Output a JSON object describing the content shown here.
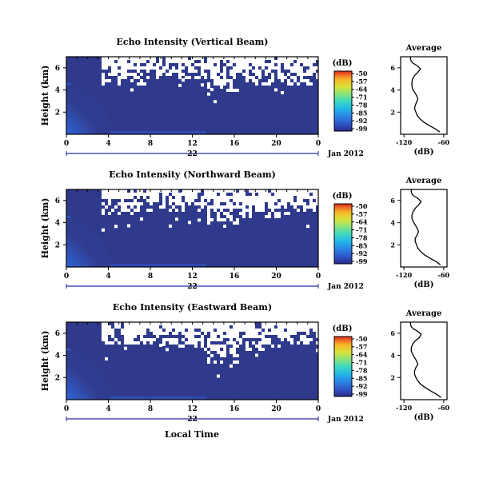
{
  "figure": {
    "xaxis_label": "Local Time",
    "date_label": "Jan 2012",
    "day_label": "22",
    "cbar_unit": "(dB)",
    "avg_title": "Average",
    "avg_xlabel": "(dB)"
  },
  "chart_data": [
    {
      "type": "heatmap",
      "title": "Echo Intensity (Vertical Beam)",
      "ylabel": "Height (km)",
      "x_ticks": [
        "0",
        "4",
        "8",
        "12",
        "16",
        "20",
        "0"
      ],
      "y_ticks": [
        "2",
        "4",
        "6"
      ],
      "xlim": [
        0,
        24
      ],
      "ylim": [
        0,
        7
      ],
      "colorbar": {
        "label": "(dB)",
        "ticks": [
          "-50",
          "-57",
          "-64",
          "-71",
          "-78",
          "-85",
          "-92",
          "-99"
        ],
        "range": [
          -99,
          -50
        ]
      },
      "avg_profile": {
        "title": "Average",
        "xlabel": "(dB)",
        "x_ticks": [
          "-120",
          "-60"
        ],
        "y_ticks": [
          "2",
          "4",
          "6"
        ],
        "xlim": [
          -125,
          -55
        ],
        "ylim": [
          0,
          7
        ],
        "x": [
          -66,
          -73,
          -82,
          -90,
          -96,
          -100,
          -102,
          -104,
          -103,
          -101,
          -99,
          -101,
          -104,
          -107,
          -108,
          -108,
          -107,
          -104,
          -99,
          -95,
          -100,
          -106,
          -109,
          -110,
          -110
        ],
        "y": [
          0.2,
          0.5,
          0.8,
          1.1,
          1.4,
          1.7,
          2.0,
          2.3,
          2.6,
          2.9,
          3.2,
          3.5,
          3.8,
          4.1,
          4.4,
          4.7,
          5.0,
          5.3,
          5.6,
          5.9,
          6.2,
          6.4,
          6.6,
          6.8,
          7.0
        ]
      }
    },
    {
      "type": "heatmap",
      "title": "Echo Intensity (Northward Beam)",
      "ylabel": "Height (km)",
      "x_ticks": [
        "0",
        "4",
        "8",
        "12",
        "16",
        "20",
        "0"
      ],
      "y_ticks": [
        "2",
        "4",
        "6"
      ],
      "xlim": [
        0,
        24
      ],
      "ylim": [
        0,
        7
      ],
      "colorbar": {
        "label": "(dB)",
        "ticks": [
          "-50",
          "-57",
          "-64",
          "-71",
          "-78",
          "-85",
          "-92",
          "-99"
        ],
        "range": [
          -99,
          -50
        ]
      },
      "avg_profile": {
        "title": "Average",
        "xlabel": "(dB)",
        "x_ticks": [
          "-120",
          "-60"
        ],
        "y_ticks": [
          "2",
          "4",
          "6"
        ],
        "xlim": [
          -125,
          -55
        ],
        "ylim": [
          0,
          7
        ],
        "x": [
          -65,
          -72,
          -81,
          -89,
          -95,
          -99,
          -101,
          -103,
          -103,
          -100,
          -98,
          -100,
          -103,
          -106,
          -108,
          -108,
          -106,
          -103,
          -98,
          -94,
          -99,
          -105,
          -108,
          -109,
          -109
        ],
        "y": [
          0.2,
          0.5,
          0.8,
          1.1,
          1.4,
          1.7,
          2.0,
          2.3,
          2.6,
          2.9,
          3.2,
          3.5,
          3.8,
          4.1,
          4.4,
          4.7,
          5.0,
          5.3,
          5.6,
          5.9,
          6.2,
          6.4,
          6.6,
          6.8,
          7.0
        ]
      }
    },
    {
      "type": "heatmap",
      "title": "Echo Intensity (Eastward Beam)",
      "ylabel": "Height (km)",
      "x_ticks": [
        "0",
        "4",
        "8",
        "12",
        "16",
        "20",
        "0"
      ],
      "y_ticks": [
        "2",
        "4",
        "6"
      ],
      "xlim": [
        0,
        24
      ],
      "ylim": [
        0,
        7
      ],
      "colorbar": {
        "label": "(dB)",
        "ticks": [
          "-50",
          "-57",
          "-64",
          "-71",
          "-78",
          "-85",
          "-92",
          "-99"
        ],
        "range": [
          -99,
          -50
        ]
      },
      "avg_profile": {
        "title": "Average",
        "xlabel": "(dB)",
        "x_ticks": [
          "-120",
          "-60"
        ],
        "y_ticks": [
          "2",
          "4",
          "6"
        ],
        "xlim": [
          -125,
          -55
        ],
        "ylim": [
          0,
          7
        ],
        "x": [
          -64,
          -71,
          -80,
          -88,
          -95,
          -99,
          -102,
          -104,
          -104,
          -102,
          -99,
          -101,
          -104,
          -107,
          -109,
          -109,
          -107,
          -103,
          -97,
          -94,
          -100,
          -106,
          -109,
          -110,
          -110
        ],
        "y": [
          0.2,
          0.5,
          0.8,
          1.1,
          1.4,
          1.7,
          2.0,
          2.3,
          2.6,
          2.9,
          3.2,
          3.5,
          3.8,
          4.1,
          4.4,
          4.7,
          5.0,
          5.3,
          5.6,
          5.9,
          6.2,
          6.4,
          6.6,
          6.8,
          7.0
        ]
      }
    }
  ],
  "colors": {
    "background_echo": "#303a8c",
    "colormap": [
      "#2a2a8c",
      "#2f55c8",
      "#2b86e6",
      "#22b6e8",
      "#3fd9c0",
      "#8be37a",
      "#d8e33a",
      "#f7b728",
      "#ef6a25",
      "#d7251f"
    ]
  }
}
